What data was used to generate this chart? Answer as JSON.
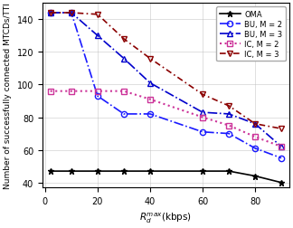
{
  "x": [
    2,
    10,
    20,
    30,
    40,
    60,
    70,
    80,
    90
  ],
  "OMA": [
    47,
    47,
    47,
    47,
    47,
    47,
    47,
    44,
    40
  ],
  "BU_M2": [
    144,
    144,
    93,
    82,
    82,
    71,
    70,
    61,
    55
  ],
  "BU_M3": [
    144,
    144,
    130,
    116,
    101,
    83,
    82,
    76,
    62
  ],
  "IC_M2": [
    96,
    96,
    96,
    96,
    91,
    80,
    75,
    68,
    62
  ],
  "IC_M3": [
    144,
    144,
    143,
    128,
    116,
    94,
    87,
    76,
    73
  ],
  "xlabel": "$R_d^{max}$(kbps)",
  "ylabel": "Number of successfully connected MTCDs/TTI",
  "xlim": [
    -1,
    93
  ],
  "ylim": [
    37,
    150
  ],
  "yticks": [
    40,
    60,
    80,
    100,
    120,
    140
  ],
  "xticks": [
    0,
    20,
    40,
    60,
    80
  ],
  "colors": {
    "OMA": "#000000",
    "BU_M2": "#1a1aff",
    "BU_M3": "#0000cc",
    "IC_M2": "#cc3399",
    "IC_M3": "#8b0000"
  }
}
